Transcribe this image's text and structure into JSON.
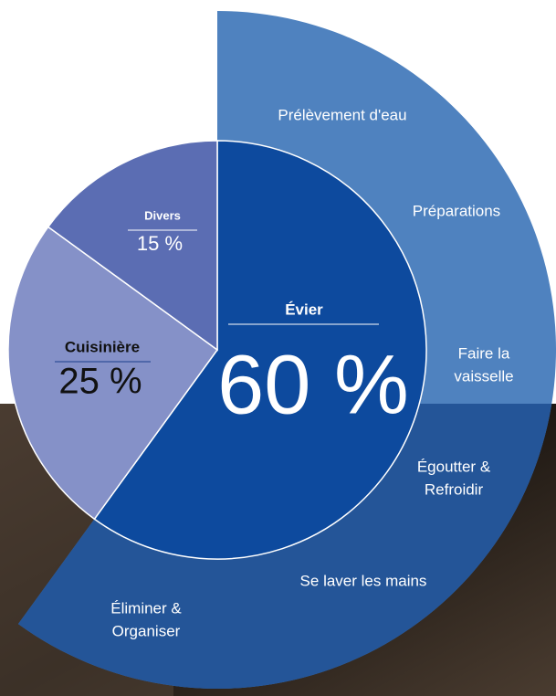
{
  "chart_data": {
    "type": "pie",
    "categories": [
      "Évier",
      "Cuisinière",
      "Divers"
    ],
    "values": [
      60,
      25,
      15
    ],
    "value_labels": [
      "60 %",
      "25 %",
      "15 %"
    ],
    "colors": [
      "#0d4a9e",
      "#8591c8",
      "#5b6db3"
    ],
    "ring_labels": [
      [
        "Prélèvement d'eau"
      ],
      [
        "Préparations"
      ],
      [
        "Faire la",
        "vaisselle"
      ],
      [
        "Égoutter &",
        "Refroidir"
      ],
      [
        "Se laver les mains"
      ],
      [
        "Éliminer &",
        "Organiser"
      ]
    ]
  }
}
